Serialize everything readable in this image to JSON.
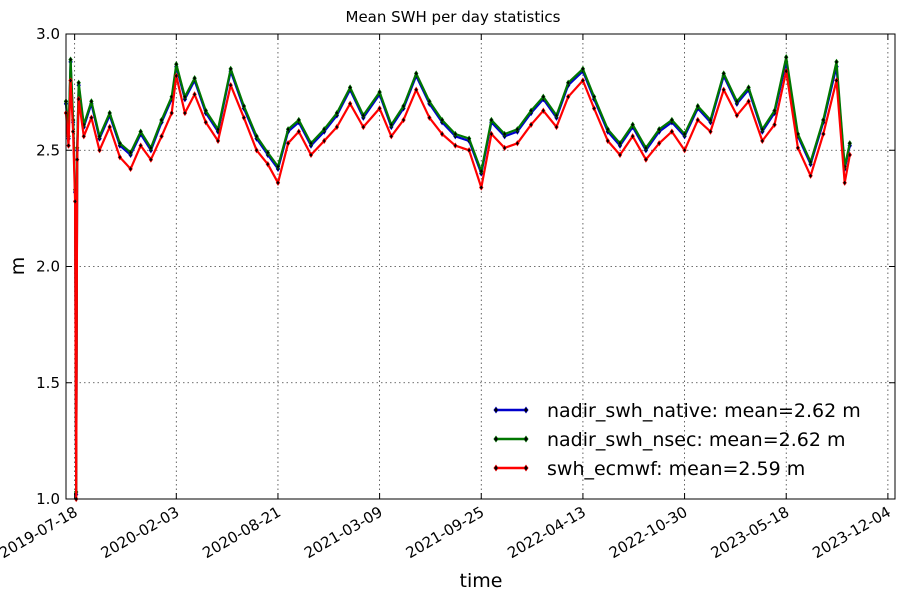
{
  "chart_data": {
    "type": "line",
    "title": "Mean SWH per day statistics",
    "xlabel": "time",
    "ylabel": "m",
    "ylim": [
      1.0,
      3.0
    ],
    "xlim": [
      "2019-07-01",
      "2023-12-18"
    ],
    "y_ticks": [
      "1.0",
      "1.5",
      "2.0",
      "2.5",
      "3.0"
    ],
    "x_ticks": [
      "2019-07-18",
      "2020-02-03",
      "2020-08-21",
      "2021-03-09",
      "2021-09-25",
      "2022-04-13",
      "2022-10-30",
      "2023-05-18",
      "2023-12-04"
    ],
    "grid": true,
    "legend_position": "lower-right",
    "marker": "diamond",
    "series": [
      {
        "name": "nadir_swh_native: mean=2.62 m",
        "color": "#0000cc",
        "points": [
          [
            "2019-07-01",
            2.7
          ],
          [
            "2019-07-06",
            2.55
          ],
          [
            "2019-07-10",
            2.88
          ],
          [
            "2019-07-15",
            2.62
          ],
          [
            "2019-07-19",
            2.32
          ],
          [
            "2019-07-21",
            1.02
          ],
          [
            "2019-07-23",
            2.5
          ],
          [
            "2019-07-26",
            2.78
          ],
          [
            "2019-08-05",
            2.6
          ],
          [
            "2019-08-20",
            2.7
          ],
          [
            "2019-09-05",
            2.55
          ],
          [
            "2019-09-25",
            2.65
          ],
          [
            "2019-10-15",
            2.52
          ],
          [
            "2019-11-05",
            2.48
          ],
          [
            "2019-11-25",
            2.57
          ],
          [
            "2019-12-15",
            2.5
          ],
          [
            "2020-01-05",
            2.62
          ],
          [
            "2020-01-25",
            2.72
          ],
          [
            "2020-02-03",
            2.86
          ],
          [
            "2020-02-20",
            2.72
          ],
          [
            "2020-03-10",
            2.8
          ],
          [
            "2020-04-01",
            2.66
          ],
          [
            "2020-04-25",
            2.58
          ],
          [
            "2020-05-20",
            2.84
          ],
          [
            "2020-06-15",
            2.68
          ],
          [
            "2020-07-10",
            2.55
          ],
          [
            "2020-08-01",
            2.48
          ],
          [
            "2020-08-21",
            2.42
          ],
          [
            "2020-09-10",
            2.58
          ],
          [
            "2020-10-01",
            2.62
          ],
          [
            "2020-10-25",
            2.52
          ],
          [
            "2020-11-20",
            2.58
          ],
          [
            "2020-12-15",
            2.65
          ],
          [
            "2021-01-10",
            2.76
          ],
          [
            "2021-02-05",
            2.64
          ],
          [
            "2021-03-09",
            2.74
          ],
          [
            "2021-04-01",
            2.6
          ],
          [
            "2021-04-25",
            2.68
          ],
          [
            "2021-05-20",
            2.82
          ],
          [
            "2021-06-15",
            2.7
          ],
          [
            "2021-07-10",
            2.62
          ],
          [
            "2021-08-05",
            2.56
          ],
          [
            "2021-09-01",
            2.54
          ],
          [
            "2021-09-25",
            2.4
          ],
          [
            "2021-10-15",
            2.62
          ],
          [
            "2021-11-10",
            2.56
          ],
          [
            "2021-12-05",
            2.58
          ],
          [
            "2022-01-01",
            2.66
          ],
          [
            "2022-01-25",
            2.72
          ],
          [
            "2022-02-20",
            2.64
          ],
          [
            "2022-03-15",
            2.78
          ],
          [
            "2022-04-13",
            2.84
          ],
          [
            "2022-05-05",
            2.72
          ],
          [
            "2022-06-01",
            2.58
          ],
          [
            "2022-06-25",
            2.52
          ],
          [
            "2022-07-20",
            2.6
          ],
          [
            "2022-08-15",
            2.5
          ],
          [
            "2022-09-10",
            2.58
          ],
          [
            "2022-10-05",
            2.62
          ],
          [
            "2022-10-30",
            2.56
          ],
          [
            "2022-11-25",
            2.68
          ],
          [
            "2022-12-20",
            2.62
          ],
          [
            "2023-01-15",
            2.82
          ],
          [
            "2023-02-10",
            2.7
          ],
          [
            "2023-03-05",
            2.76
          ],
          [
            "2023-04-01",
            2.58
          ],
          [
            "2023-04-25",
            2.66
          ],
          [
            "2023-05-18",
            2.88
          ],
          [
            "2023-06-10",
            2.56
          ],
          [
            "2023-07-05",
            2.44
          ],
          [
            "2023-07-30",
            2.62
          ],
          [
            "2023-08-25",
            2.86
          ],
          [
            "2023-09-10",
            2.42
          ],
          [
            "2023-09-20",
            2.52
          ]
        ]
      },
      {
        "name": "nadir_swh_nsec: mean=2.62 m",
        "color": "#007700",
        "points": [
          [
            "2019-07-01",
            2.71
          ],
          [
            "2019-07-06",
            2.56
          ],
          [
            "2019-07-10",
            2.89
          ],
          [
            "2019-07-15",
            2.63
          ],
          [
            "2019-07-19",
            2.33
          ],
          [
            "2019-07-21",
            1.03
          ],
          [
            "2019-07-23",
            2.51
          ],
          [
            "2019-07-26",
            2.79
          ],
          [
            "2019-08-05",
            2.61
          ],
          [
            "2019-08-20",
            2.71
          ],
          [
            "2019-09-05",
            2.56
          ],
          [
            "2019-09-25",
            2.66
          ],
          [
            "2019-10-15",
            2.53
          ],
          [
            "2019-11-05",
            2.49
          ],
          [
            "2019-11-25",
            2.58
          ],
          [
            "2019-12-15",
            2.51
          ],
          [
            "2020-01-05",
            2.63
          ],
          [
            "2020-01-25",
            2.73
          ],
          [
            "2020-02-03",
            2.87
          ],
          [
            "2020-02-20",
            2.73
          ],
          [
            "2020-03-10",
            2.81
          ],
          [
            "2020-04-01",
            2.67
          ],
          [
            "2020-04-25",
            2.59
          ],
          [
            "2020-05-20",
            2.85
          ],
          [
            "2020-06-15",
            2.69
          ],
          [
            "2020-07-10",
            2.56
          ],
          [
            "2020-08-01",
            2.49
          ],
          [
            "2020-08-21",
            2.43
          ],
          [
            "2020-09-10",
            2.59
          ],
          [
            "2020-10-01",
            2.63
          ],
          [
            "2020-10-25",
            2.53
          ],
          [
            "2020-11-20",
            2.59
          ],
          [
            "2020-12-15",
            2.66
          ],
          [
            "2021-01-10",
            2.77
          ],
          [
            "2021-02-05",
            2.65
          ],
          [
            "2021-03-09",
            2.75
          ],
          [
            "2021-04-01",
            2.61
          ],
          [
            "2021-04-25",
            2.69
          ],
          [
            "2021-05-20",
            2.83
          ],
          [
            "2021-06-15",
            2.71
          ],
          [
            "2021-07-10",
            2.63
          ],
          [
            "2021-08-05",
            2.57
          ],
          [
            "2021-09-01",
            2.55
          ],
          [
            "2021-09-25",
            2.41
          ],
          [
            "2021-10-15",
            2.63
          ],
          [
            "2021-11-10",
            2.57
          ],
          [
            "2021-12-05",
            2.59
          ],
          [
            "2022-01-01",
            2.67
          ],
          [
            "2022-01-25",
            2.73
          ],
          [
            "2022-02-20",
            2.65
          ],
          [
            "2022-03-15",
            2.79
          ],
          [
            "2022-04-13",
            2.85
          ],
          [
            "2022-05-05",
            2.73
          ],
          [
            "2022-06-01",
            2.59
          ],
          [
            "2022-06-25",
            2.53
          ],
          [
            "2022-07-20",
            2.61
          ],
          [
            "2022-08-15",
            2.51
          ],
          [
            "2022-09-10",
            2.59
          ],
          [
            "2022-10-05",
            2.63
          ],
          [
            "2022-10-30",
            2.57
          ],
          [
            "2022-11-25",
            2.69
          ],
          [
            "2022-12-20",
            2.63
          ],
          [
            "2023-01-15",
            2.83
          ],
          [
            "2023-02-10",
            2.71
          ],
          [
            "2023-03-05",
            2.77
          ],
          [
            "2023-04-01",
            2.59
          ],
          [
            "2023-04-25",
            2.67
          ],
          [
            "2023-05-18",
            2.9
          ],
          [
            "2023-06-10",
            2.57
          ],
          [
            "2023-07-05",
            2.45
          ],
          [
            "2023-07-30",
            2.63
          ],
          [
            "2023-08-25",
            2.88
          ],
          [
            "2023-09-10",
            2.43
          ],
          [
            "2023-09-20",
            2.53
          ]
        ]
      },
      {
        "name": "swh_ecmwf: mean=2.59 m",
        "color": "#ff0000",
        "points": [
          [
            "2019-07-01",
            2.66
          ],
          [
            "2019-07-06",
            2.52
          ],
          [
            "2019-07-10",
            2.8
          ],
          [
            "2019-07-15",
            2.58
          ],
          [
            "2019-07-19",
            2.28
          ],
          [
            "2019-07-21",
            1.0
          ],
          [
            "2019-07-23",
            2.46
          ],
          [
            "2019-07-26",
            2.72
          ],
          [
            "2019-08-05",
            2.56
          ],
          [
            "2019-08-20",
            2.64
          ],
          [
            "2019-09-05",
            2.5
          ],
          [
            "2019-09-25",
            2.6
          ],
          [
            "2019-10-15",
            2.47
          ],
          [
            "2019-11-05",
            2.42
          ],
          [
            "2019-11-25",
            2.52
          ],
          [
            "2019-12-15",
            2.46
          ],
          [
            "2020-01-05",
            2.56
          ],
          [
            "2020-01-25",
            2.66
          ],
          [
            "2020-02-03",
            2.82
          ],
          [
            "2020-02-20",
            2.66
          ],
          [
            "2020-03-10",
            2.74
          ],
          [
            "2020-04-01",
            2.62
          ],
          [
            "2020-04-25",
            2.54
          ],
          [
            "2020-05-20",
            2.78
          ],
          [
            "2020-06-15",
            2.64
          ],
          [
            "2020-07-10",
            2.5
          ],
          [
            "2020-08-01",
            2.44
          ],
          [
            "2020-08-21",
            2.36
          ],
          [
            "2020-09-10",
            2.53
          ],
          [
            "2020-10-01",
            2.58
          ],
          [
            "2020-10-25",
            2.48
          ],
          [
            "2020-11-20",
            2.54
          ],
          [
            "2020-12-15",
            2.6
          ],
          [
            "2021-01-10",
            2.7
          ],
          [
            "2021-02-05",
            2.6
          ],
          [
            "2021-03-09",
            2.68
          ],
          [
            "2021-04-01",
            2.56
          ],
          [
            "2021-04-25",
            2.63
          ],
          [
            "2021-05-20",
            2.76
          ],
          [
            "2021-06-15",
            2.64
          ],
          [
            "2021-07-10",
            2.57
          ],
          [
            "2021-08-05",
            2.52
          ],
          [
            "2021-09-01",
            2.5
          ],
          [
            "2021-09-25",
            2.34
          ],
          [
            "2021-10-15",
            2.57
          ],
          [
            "2021-11-10",
            2.51
          ],
          [
            "2021-12-05",
            2.53
          ],
          [
            "2022-01-01",
            2.61
          ],
          [
            "2022-01-25",
            2.67
          ],
          [
            "2022-02-20",
            2.6
          ],
          [
            "2022-03-15",
            2.73
          ],
          [
            "2022-04-13",
            2.8
          ],
          [
            "2022-05-05",
            2.68
          ],
          [
            "2022-06-01",
            2.54
          ],
          [
            "2022-06-25",
            2.48
          ],
          [
            "2022-07-20",
            2.56
          ],
          [
            "2022-08-15",
            2.46
          ],
          [
            "2022-09-10",
            2.53
          ],
          [
            "2022-10-05",
            2.58
          ],
          [
            "2022-10-30",
            2.5
          ],
          [
            "2022-11-25",
            2.63
          ],
          [
            "2022-12-20",
            2.58
          ],
          [
            "2023-01-15",
            2.76
          ],
          [
            "2023-02-10",
            2.65
          ],
          [
            "2023-03-05",
            2.71
          ],
          [
            "2023-04-01",
            2.54
          ],
          [
            "2023-04-25",
            2.61
          ],
          [
            "2023-05-18",
            2.84
          ],
          [
            "2023-06-10",
            2.51
          ],
          [
            "2023-07-05",
            2.39
          ],
          [
            "2023-07-30",
            2.57
          ],
          [
            "2023-08-25",
            2.8
          ],
          [
            "2023-09-10",
            2.36
          ],
          [
            "2023-09-20",
            2.48
          ]
        ]
      }
    ]
  }
}
